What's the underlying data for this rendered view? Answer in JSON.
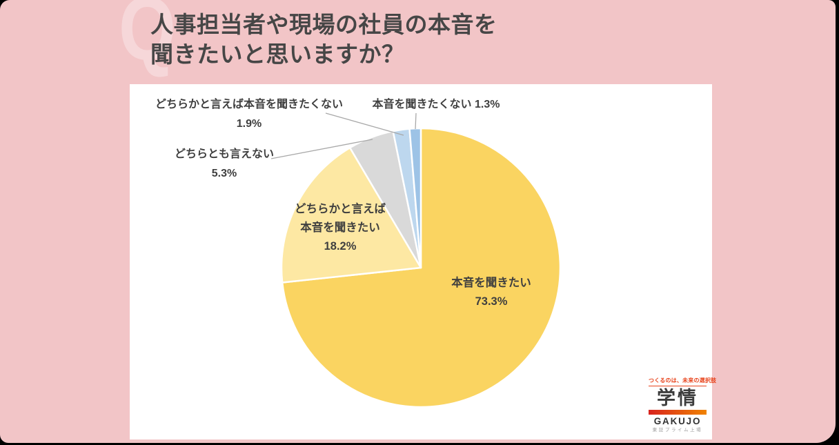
{
  "title": {
    "line1": "人事担当者や現場の社員の本音を",
    "line2": "聞きたいと思いますか？",
    "watermark": "Q"
  },
  "chart_data": {
    "type": "pie",
    "title": "人事担当者や現場の社員の本音を聞きたいと思いますか？",
    "unit": "%",
    "start_angle_deg": 0,
    "direction": "clockwise",
    "legend": "none",
    "slices": [
      {
        "label": "本音を聞きたい",
        "value": 73.3,
        "color": "#FAD461",
        "label_position": "inside"
      },
      {
        "label": "どちらかと言えば本音を聞きたい",
        "value": 18.2,
        "color": "#FDE8A3",
        "label_position": "inside"
      },
      {
        "label": "どちらとも言えない",
        "value": 5.3,
        "color": "#D9D9D9",
        "label_position": "outside"
      },
      {
        "label": "どちらかと言えば本音を聞きたくない",
        "value": 1.9,
        "color": "#BDD7EE",
        "label_position": "outside"
      },
      {
        "label": "本音を聞きたくない",
        "value": 1.3,
        "color": "#9DC3E6",
        "label_position": "outside"
      }
    ]
  },
  "callouts": {
    "inside_main": {
      "line1": "本音を聞きたい",
      "line2": "73.3%"
    },
    "inside_sub": {
      "line1": "どちらかと言えば",
      "line2": "本音を聞きたい",
      "line3": "18.2%"
    },
    "out_neutral": {
      "line1": "どちらとも言えない",
      "line2": "5.3%"
    },
    "out_rather_not": {
      "line1": "どちらかと言えば本音を聞きたくない",
      "line2": "1.9%"
    },
    "out_not": {
      "line1": "本音を聞きたくない 1.3%"
    }
  },
  "logo": {
    "tagline": "つくるのは、未来の選択肢",
    "name_jp": "学情",
    "name_en": "GAKUJO",
    "sub": "東証プライム上場"
  },
  "colors": {
    "background_pink": "#F2C5C7",
    "watermark_pink": "#F6D7D9",
    "title_text": "#464646",
    "label_text": "#3F3F3F",
    "panel": "#FFFFFF",
    "leader_line": "#A8A8A8",
    "logo_red": "#E8421A",
    "logo_bar_from": "#D8231E",
    "logo_bar_to": "#F08300"
  }
}
